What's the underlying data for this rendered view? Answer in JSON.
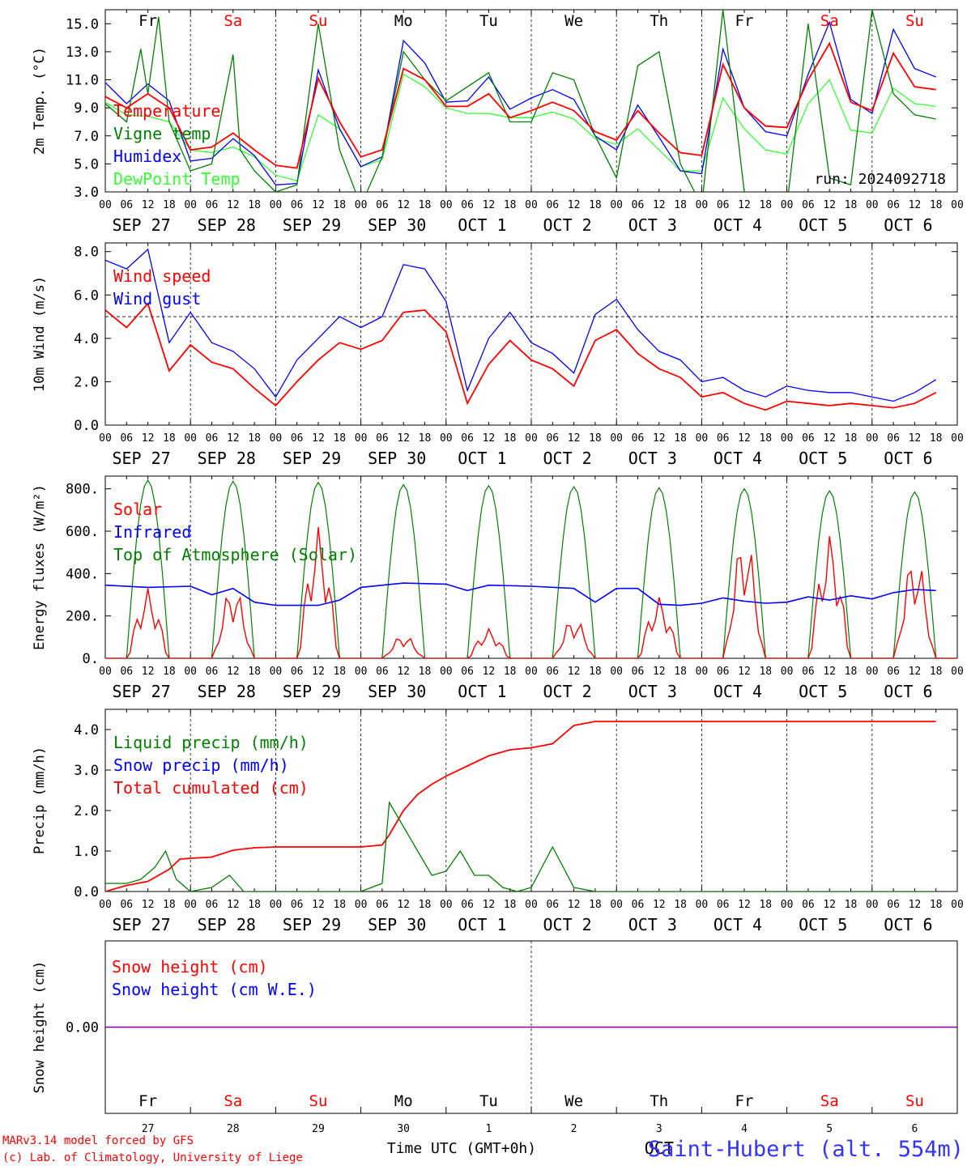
{
  "header": {
    "run_label": "run: 2024092718"
  },
  "footer": {
    "model_line": "MARv3.14 model forced by GFS",
    "lab_line": "(c) Lab. of Climatology, University of Liege",
    "xlabel": "Time UTC (GMT+0h)",
    "station": "Saint-Hubert (alt. 554m)"
  },
  "colors": {
    "red": "#ff0000",
    "blue": "#0000ff",
    "green": "#008000",
    "lightgreen": "#33ff33",
    "purple": "#8000a0",
    "weekend": "#ff0000",
    "weekday": "#000000"
  },
  "days": [
    "Fr",
    "Sa",
    "Su",
    "Mo",
    "Tu",
    "We",
    "Th",
    "Fr",
    "Sa",
    "Su"
  ],
  "weekend": [
    false,
    true,
    true,
    false,
    false,
    false,
    false,
    false,
    true,
    true
  ],
  "dates": [
    "SEP 27",
    "SEP 28",
    "SEP 29",
    "SEP 30",
    "OCT 1",
    "OCT 2",
    "OCT 3",
    "OCT 4",
    "OCT 5",
    "OCT 6"
  ],
  "day_numbers": [
    "27",
    "28",
    "29",
    "30",
    "1",
    "2",
    "3",
    "4",
    "5",
    "6"
  ],
  "month_label": "OCT",
  "hour_ticks": [
    "00",
    "06",
    "12",
    "18"
  ],
  "chart_data": [
    {
      "id": "temp",
      "type": "line",
      "ylabel": "2m Temp. (°C)",
      "ylim": [
        3.0,
        16.0
      ],
      "yticks": [
        "3.0",
        "5.0",
        "7.0",
        "9.0",
        "11.0",
        "13.0",
        "15.0"
      ],
      "x_unit": "hours since 2024-09-27 00 UTC",
      "legend": [
        "Temperature",
        "Vigne temp",
        "Humidex",
        "DewPoint Temp"
      ],
      "series": [
        {
          "name": "Temperature",
          "color": "red",
          "x": [
            0,
            6,
            12,
            18,
            24,
            30,
            36,
            42,
            48,
            54,
            60,
            66,
            72,
            78,
            84,
            90,
            96,
            102,
            108,
            114,
            120,
            126,
            132,
            138,
            144,
            150,
            156,
            162,
            168,
            174,
            180,
            186,
            192,
            198,
            204,
            210,
            216,
            222,
            228,
            234
          ],
          "y": [
            9.8,
            9.0,
            10.0,
            9.0,
            6.0,
            6.2,
            7.2,
            6.0,
            4.9,
            4.7,
            11.1,
            8.0,
            5.5,
            6.0,
            11.8,
            11.0,
            9.1,
            9.1,
            10.0,
            8.3,
            8.8,
            9.4,
            8.8,
            7.3,
            6.7,
            8.8,
            7.2,
            5.8,
            5.6,
            12.1,
            9.0,
            7.7,
            7.6,
            11.0,
            13.6,
            9.4,
            8.8,
            12.9,
            10.5,
            10.3
          ]
        },
        {
          "name": "Vigne temp",
          "color": "green",
          "x": [
            0,
            6,
            10,
            12,
            15,
            18,
            24,
            30,
            36,
            38,
            42,
            48,
            54,
            60,
            66,
            72,
            78,
            84,
            90,
            96,
            102,
            108,
            114,
            120,
            126,
            132,
            138,
            144,
            150,
            156,
            162,
            168,
            174,
            180,
            186,
            192,
            198,
            204,
            210,
            216,
            222,
            228,
            234
          ],
          "y": [
            9.3,
            8.0,
            13.2,
            10.0,
            15.5,
            8.0,
            4.5,
            5.0,
            12.8,
            6.0,
            4.5,
            3.0,
            3.5,
            15.0,
            6.0,
            2.0,
            5.5,
            13.0,
            11.0,
            9.5,
            10.5,
            11.5,
            8.0,
            8.0,
            11.5,
            11.0,
            7.0,
            4.0,
            12.0,
            13.0,
            5.0,
            2.0,
            16.0,
            3.0,
            0.0,
            2.0,
            15.0,
            4.0,
            3.5,
            16.0,
            10.0,
            8.5,
            8.2
          ]
        },
        {
          "name": "Humidex",
          "color": "blue",
          "x": [
            0,
            6,
            12,
            18,
            24,
            30,
            36,
            42,
            48,
            54,
            60,
            66,
            72,
            78,
            84,
            90,
            96,
            102,
            108,
            114,
            120,
            126,
            132,
            138,
            144,
            150,
            156,
            162,
            168,
            174,
            180,
            186,
            192,
            198,
            204,
            210,
            216,
            222,
            228,
            234
          ],
          "y": [
            10.8,
            9.3,
            10.7,
            9.5,
            5.2,
            5.4,
            6.8,
            5.6,
            3.5,
            3.6,
            11.7,
            7.5,
            4.8,
            5.5,
            13.8,
            12.2,
            9.4,
            9.5,
            11.2,
            8.9,
            9.7,
            10.3,
            9.6,
            7.0,
            6.0,
            9.2,
            6.9,
            4.5,
            4.3,
            13.2,
            9.0,
            7.3,
            7.0,
            11.4,
            15.1,
            9.6,
            8.6,
            14.6,
            11.8,
            11.2
          ]
        },
        {
          "name": "DewPoint Temp",
          "color": "lightgreen",
          "x": [
            0,
            6,
            12,
            18,
            24,
            30,
            36,
            42,
            48,
            54,
            60,
            66,
            72,
            78,
            84,
            90,
            96,
            102,
            108,
            114,
            120,
            126,
            132,
            138,
            144,
            150,
            156,
            162,
            168,
            174,
            180,
            186,
            192,
            198,
            204,
            210,
            216,
            222,
            228,
            234
          ],
          "y": [
            9.4,
            8.5,
            8.4,
            8.0,
            6.0,
            5.8,
            6.2,
            5.5,
            4.2,
            3.8,
            8.5,
            7.5,
            4.8,
            5.3,
            11.4,
            10.5,
            9.0,
            8.6,
            8.6,
            8.3,
            8.3,
            8.7,
            8.2,
            6.8,
            6.4,
            7.5,
            6.0,
            4.5,
            4.5,
            9.7,
            7.5,
            6.0,
            5.7,
            9.3,
            11.0,
            7.4,
            7.2,
            10.4,
            9.3,
            9.1
          ]
        }
      ]
    },
    {
      "id": "wind",
      "type": "line",
      "ylabel": "10m Wind (m/s)",
      "ylim": [
        0.0,
        8.4
      ],
      "yticks": [
        "0.0",
        "2.0",
        "4.0",
        "6.0",
        "8.0"
      ],
      "reference_line": 5.0,
      "legend": [
        "Wind speed",
        "Wind gust"
      ],
      "series": [
        {
          "name": "Wind speed",
          "color": "red",
          "x": [
            0,
            6,
            12,
            18,
            24,
            30,
            36,
            42,
            48,
            54,
            60,
            66,
            72,
            78,
            84,
            90,
            96,
            102,
            108,
            114,
            120,
            126,
            132,
            138,
            144,
            150,
            156,
            162,
            168,
            174,
            180,
            186,
            192,
            198,
            204,
            210,
            216,
            222,
            228,
            234
          ],
          "y": [
            5.3,
            4.5,
            5.6,
            2.5,
            3.7,
            2.9,
            2.6,
            1.7,
            0.9,
            2.0,
            3.0,
            3.8,
            3.5,
            3.9,
            5.2,
            5.3,
            4.3,
            1.0,
            2.8,
            3.9,
            3.0,
            2.6,
            1.8,
            3.9,
            4.4,
            3.3,
            2.6,
            2.2,
            1.3,
            1.5,
            1.0,
            0.7,
            1.1,
            1.0,
            0.9,
            1.0,
            0.9,
            0.8,
            1.0,
            1.5
          ]
        },
        {
          "name": "Wind gust",
          "color": "blue",
          "x": [
            0,
            6,
            12,
            18,
            24,
            30,
            36,
            42,
            48,
            54,
            60,
            66,
            72,
            78,
            84,
            90,
            96,
            102,
            108,
            114,
            120,
            126,
            132,
            138,
            144,
            150,
            156,
            162,
            168,
            174,
            180,
            186,
            192,
            198,
            204,
            210,
            216,
            222,
            228,
            234
          ],
          "y": [
            7.6,
            7.2,
            8.1,
            3.8,
            5.2,
            3.8,
            3.4,
            2.6,
            1.3,
            3.0,
            4.0,
            5.0,
            4.5,
            5.0,
            7.4,
            7.2,
            5.7,
            1.6,
            4.0,
            5.2,
            3.8,
            3.3,
            2.4,
            5.1,
            5.8,
            4.4,
            3.4,
            3.0,
            2.0,
            2.2,
            1.6,
            1.3,
            1.8,
            1.6,
            1.5,
            1.5,
            1.3,
            1.1,
            1.5,
            2.1
          ]
        }
      ]
    },
    {
      "id": "energy",
      "type": "line",
      "ylabel": "Energy fluxes (W/m²)",
      "ylim": [
        0,
        860
      ],
      "yticks": [
        "0.",
        "200.",
        "400.",
        "600.",
        "800."
      ],
      "legend": [
        "Solar",
        "Infrared",
        "Top of Atmosphere (Solar)"
      ],
      "toa_peaks": [
        840,
        835,
        830,
        820,
        815,
        810,
        805,
        800,
        790,
        785
      ],
      "solar_peaks": [
        330,
        340,
        620,
        110,
        140,
        190,
        290,
        580,
        585,
        490
      ],
      "infrared": {
        "name": "Infrared",
        "color": "blue",
        "x": [
          0,
          12,
          24,
          30,
          36,
          42,
          48,
          60,
          66,
          72,
          84,
          96,
          102,
          108,
          120,
          132,
          138,
          144,
          150,
          156,
          162,
          168,
          174,
          180,
          186,
          192,
          198,
          204,
          210,
          216,
          222,
          228,
          234
        ],
        "y": [
          345,
          335,
          340,
          300,
          330,
          265,
          250,
          250,
          275,
          335,
          355,
          350,
          320,
          345,
          340,
          330,
          265,
          330,
          330,
          255,
          250,
          260,
          285,
          270,
          260,
          265,
          290,
          275,
          295,
          280,
          310,
          325,
          320
        ]
      }
    },
    {
      "id": "precip",
      "type": "line",
      "ylabel": "Precip (mm/h)",
      "ylim": [
        0.0,
        4.5
      ],
      "yticks": [
        "0.0",
        "1.0",
        "2.0",
        "3.0",
        "4.0"
      ],
      "legend": [
        "Liquid precip (mm/h)",
        "Snow precip (mm/h)",
        "Total cumulated (cm)"
      ],
      "series": [
        {
          "name": "Liquid precip (mm/h)",
          "color": "green",
          "x": [
            0,
            6,
            10,
            14,
            17,
            20,
            24,
            30,
            35,
            39,
            48,
            60,
            72,
            78,
            80,
            84,
            88,
            92,
            96,
            100,
            104,
            108,
            112,
            116,
            120,
            126,
            132,
            138,
            144,
            150,
            156,
            162,
            168,
            174,
            180,
            186,
            192,
            198,
            204,
            210,
            216,
            222,
            228,
            234
          ],
          "y": [
            0.2,
            0.2,
            0.3,
            0.6,
            1.0,
            0.3,
            0.0,
            0.1,
            0.4,
            0.0,
            0.0,
            0.0,
            0.0,
            0.2,
            2.2,
            1.6,
            1.0,
            0.4,
            0.5,
            1.0,
            0.4,
            0.4,
            0.1,
            0.0,
            0.1,
            1.1,
            0.1,
            0.0,
            0.0,
            0.0,
            0.0,
            0.0,
            0.0,
            0.0,
            0.0,
            0.0,
            0.0,
            0.0,
            0.0,
            0.0,
            0.0,
            0.0,
            0.0,
            0.0
          ]
        },
        {
          "name": "Total cumulated (cm)",
          "color": "red",
          "x": [
            0,
            6,
            12,
            18,
            21,
            24,
            30,
            36,
            42,
            48,
            60,
            72,
            78,
            80,
            84,
            88,
            92,
            96,
            102,
            108,
            114,
            120,
            126,
            132,
            138,
            144,
            150,
            156,
            162,
            168,
            174,
            180,
            186,
            192,
            198,
            204,
            210,
            216,
            222,
            228,
            234
          ],
          "y": [
            0.0,
            0.15,
            0.25,
            0.55,
            0.8,
            0.82,
            0.85,
            1.02,
            1.08,
            1.1,
            1.1,
            1.1,
            1.15,
            1.4,
            2.0,
            2.4,
            2.65,
            2.85,
            3.1,
            3.35,
            3.5,
            3.55,
            3.65,
            4.1,
            4.2,
            4.2,
            4.2,
            4.2,
            4.2,
            4.2,
            4.2,
            4.2,
            4.2,
            4.2,
            4.2,
            4.2,
            4.2,
            4.2,
            4.2,
            4.2,
            4.2
          ]
        }
      ]
    },
    {
      "id": "snow",
      "type": "line",
      "ylabel": "Snow height (cm)",
      "ylim": [
        -1.0,
        1.0
      ],
      "yticks": [
        "0.00"
      ],
      "legend": [
        "Snow height (cm)",
        "Snow height (cm W.E.)"
      ],
      "series": [
        {
          "name": "Snow height (cm)",
          "color": "red",
          "x": [
            0,
            240
          ],
          "y": [
            0,
            0
          ]
        },
        {
          "name": "Snow height (cm W.E.)",
          "color": "blue",
          "x": [
            0,
            240
          ],
          "y": [
            0,
            0
          ]
        }
      ]
    }
  ]
}
